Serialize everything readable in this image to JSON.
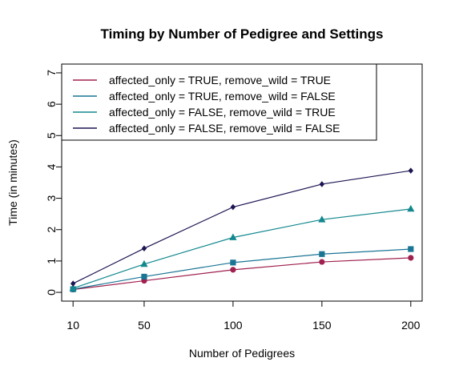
{
  "chart_data": {
    "type": "line",
    "title": "Timing by Number of Pedigree and Settings",
    "xlabel": "Number of Pedigrees",
    "ylabel": "Time (in minutes)",
    "x": [
      10,
      50,
      100,
      150,
      200
    ],
    "x_ticks": [
      10,
      50,
      100,
      150,
      200
    ],
    "y_ticks": [
      0,
      1,
      2,
      3,
      4,
      5,
      6,
      7
    ],
    "xlim": [
      3.6,
      206.4
    ],
    "ylim": [
      -0.28,
      7.28
    ],
    "grid": false,
    "legend_position": "top-left",
    "series": [
      {
        "name": "affected_only = TRUE, remove_wild = TRUE",
        "color": "#a0204f",
        "marker": "circle",
        "values": [
          0.09,
          0.37,
          0.72,
          0.97,
          1.1
        ]
      },
      {
        "name": "affected_only = TRUE, remove_wild = FALSE",
        "color": "#1a7494",
        "marker": "square",
        "values": [
          0.1,
          0.5,
          0.95,
          1.22,
          1.38
        ]
      },
      {
        "name": "affected_only = FALSE, remove_wild = TRUE",
        "color": "#12888e",
        "marker": "triangle",
        "values": [
          0.13,
          0.9,
          1.75,
          2.32,
          2.66
        ]
      },
      {
        "name": "affected_only = FALSE, remove_wild = FALSE",
        "color": "#1c1552",
        "marker": "diamond",
        "values": [
          0.28,
          1.4,
          2.72,
          3.45,
          3.88
        ]
      }
    ]
  }
}
